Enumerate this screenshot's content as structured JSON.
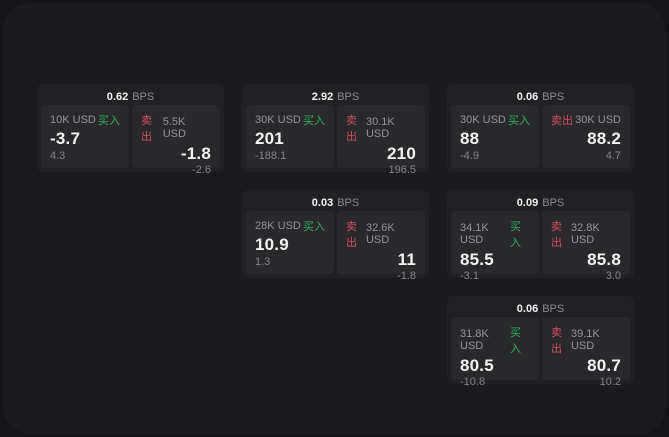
{
  "labels": {
    "bps_unit": "BPS",
    "buy": "买入",
    "sell": "卖出"
  },
  "colors": {
    "background_outer": "#151517",
    "panel": "#1b1b1d",
    "card": "#212123",
    "tile": "#29292c",
    "text_primary": "#f4f4f5",
    "text_muted": "#97979b",
    "buy_green": "#2fb463",
    "sell_red": "#d44f63"
  },
  "cards": [
    {
      "bps": "0.62",
      "buy": {
        "notional": "10K USD",
        "price": "-3.7",
        "delta": "4.3"
      },
      "sell": {
        "notional": "5.5K USD",
        "price": "-1.8",
        "delta": "-2.6"
      }
    },
    {
      "bps": "2.92",
      "buy": {
        "notional": "30K USD",
        "price": "201",
        "delta": "-188.1"
      },
      "sell": {
        "notional": "30.1K USD",
        "price": "210",
        "delta": "196.5"
      }
    },
    {
      "bps": "0.06",
      "buy": {
        "notional": "30K USD",
        "price": "88",
        "delta": "-4.9"
      },
      "sell": {
        "notional": "30K USD",
        "price": "88.2",
        "delta": "4.7"
      }
    },
    {
      "bps": "0.03",
      "buy": {
        "notional": "28K USD",
        "price": "10.9",
        "delta": "1.3"
      },
      "sell": {
        "notional": "32.6K USD",
        "price": "11",
        "delta": "-1.8"
      }
    },
    {
      "bps": "0.09",
      "buy": {
        "notional": "34.1K USD",
        "price": "85.5",
        "delta": "-3.1"
      },
      "sell": {
        "notional": "32.8K USD",
        "price": "85.8",
        "delta": "3.0"
      }
    },
    {
      "bps": "0.06",
      "buy": {
        "notional": "31.8K USD",
        "price": "80.5",
        "delta": "-10.8"
      },
      "sell": {
        "notional": "39.1K USD",
        "price": "80.7",
        "delta": "10.2"
      }
    }
  ]
}
